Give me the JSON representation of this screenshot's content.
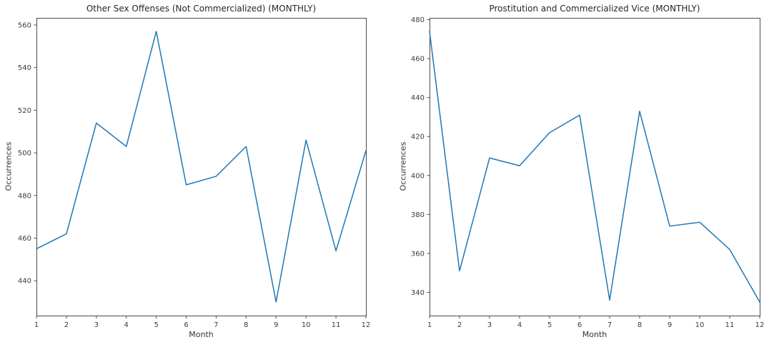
{
  "figure": {
    "background_color": "#ffffff",
    "accent_line_color": "#1f77b4",
    "spine_color": "#4c4c4c"
  },
  "chart_data": [
    {
      "type": "line",
      "title": "Other Sex Offenses (Not Commercialized) (MONTHLY)",
      "xlabel": "Month",
      "ylabel": "Occurrences",
      "x": [
        1,
        2,
        3,
        4,
        5,
        6,
        7,
        8,
        9,
        10,
        11,
        12
      ],
      "values": [
        455,
        462,
        514,
        503,
        557,
        485,
        489,
        503,
        430,
        506,
        454,
        501
      ],
      "xlim": [
        1,
        12
      ],
      "ylim": [
        423.65,
        563.35
      ],
      "xticks": [
        1,
        2,
        3,
        4,
        5,
        6,
        7,
        8,
        9,
        10,
        11,
        12
      ],
      "yticks": [
        440,
        460,
        480,
        500,
        520,
        540,
        560
      ],
      "grid": false,
      "legend": "none",
      "line_color": "#1f77b4"
    },
    {
      "type": "line",
      "title": "Prostitution and Commercialized Vice (MONTHLY)",
      "xlabel": "Month",
      "ylabel": "Occurrences",
      "x": [
        1,
        2,
        3,
        4,
        5,
        6,
        7,
        8,
        9,
        10,
        11,
        12
      ],
      "values": [
        474,
        351,
        409,
        405,
        422,
        431,
        336,
        433,
        374,
        376,
        362,
        335
      ],
      "xlim": [
        1,
        12
      ],
      "ylim": [
        328.05,
        480.95
      ],
      "xticks": [
        1,
        2,
        3,
        4,
        5,
        6,
        7,
        8,
        9,
        10,
        11,
        12
      ],
      "yticks": [
        340,
        360,
        380,
        400,
        420,
        440,
        460,
        480
      ],
      "grid": false,
      "legend": "none",
      "line_color": "#1f77b4"
    }
  ]
}
